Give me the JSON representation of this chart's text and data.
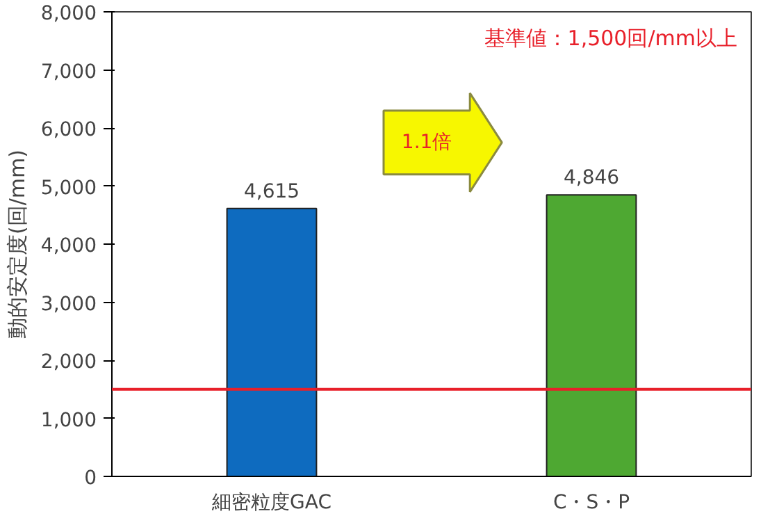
{
  "chart_data": {
    "type": "bar",
    "categories": [
      "細密粒度GAC",
      "C・S・P"
    ],
    "values": [
      4615,
      4846
    ],
    "colors": [
      "#0e6bbf",
      "#4ea832"
    ],
    "ylabel": "動的安定度(回/mm)",
    "ylim": [
      0,
      8000
    ],
    "yticks": [
      {
        "value": 0,
        "label": "0"
      },
      {
        "value": 1000,
        "label": "1,000"
      },
      {
        "value": 2000,
        "label": "2,000"
      },
      {
        "value": 3000,
        "label": "3,000"
      },
      {
        "value": 4000,
        "label": "4,000"
      },
      {
        "value": 5000,
        "label": "5,000"
      },
      {
        "value": 6000,
        "label": "6,000"
      },
      {
        "value": 7000,
        "label": "7,000"
      },
      {
        "value": 8000,
        "label": "8,000"
      }
    ],
    "value_labels": [
      "4,615",
      "4,846"
    ],
    "grid": false,
    "ref_lines": [
      {
        "axis": "y",
        "value": 1500,
        "label": "基準値：1,500回/mm以上",
        "color": "#e8202a"
      }
    ],
    "annotations": [
      "1.1倍"
    ]
  }
}
